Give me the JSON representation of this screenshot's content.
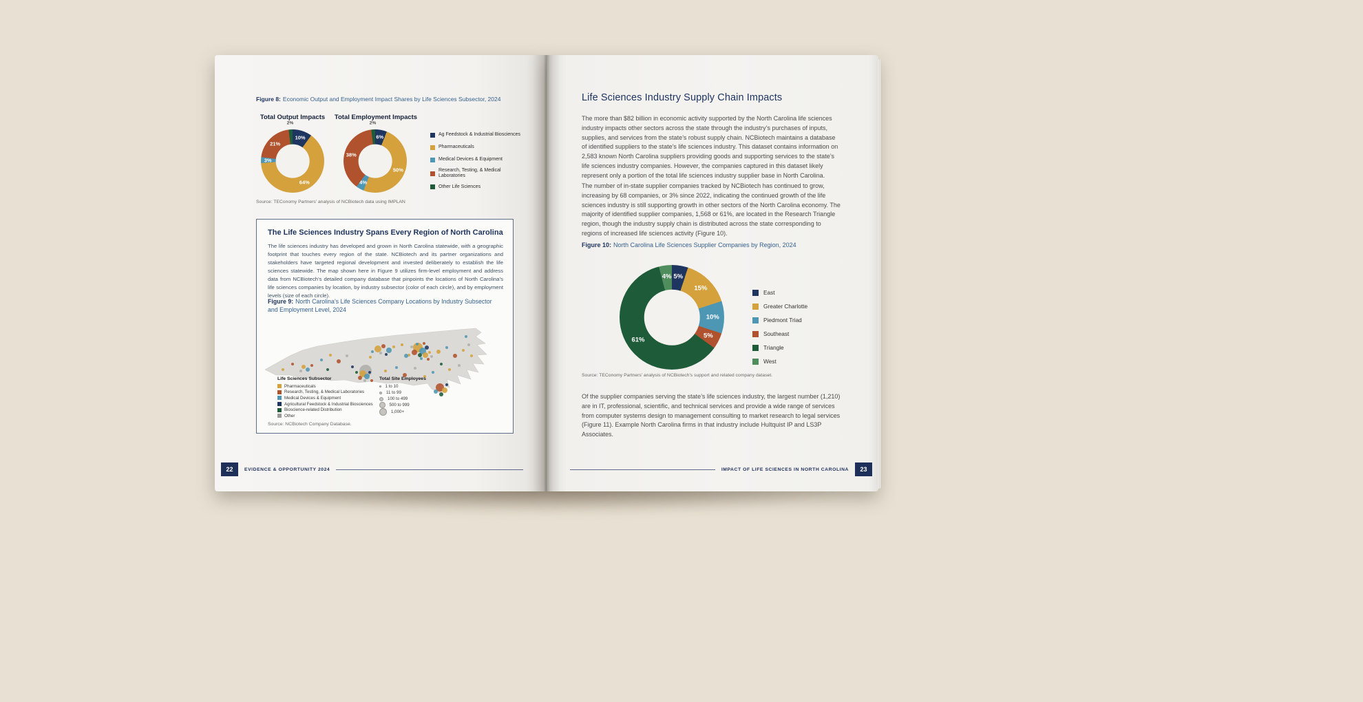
{
  "book": {
    "left_footer": {
      "page_number": "22",
      "label": "EVIDENCE & OPPORTUNITY 2024"
    },
    "right_footer": {
      "page_number": "23",
      "label": "IMPACT OF LIFE SCIENCES IN NORTH CAROLINA"
    }
  },
  "left_page": {
    "figure8": {
      "label": "Figure 8:",
      "caption": "Economic Output and Employment Impact Shares by Life Sciences Subsector, 2024",
      "source": "Source: TEConomy Partners’ analysis of NCBiotech data using IMPLAN"
    },
    "region_box": {
      "title": "The Life Sciences Industry Spans Every Region of North Carolina",
      "body": "The life sciences industry has developed and grown in North Carolina statewide, with a geographic footprint that touches every region of the state. NCBiotech and its partner organizations and stakeholders have targeted regional development and invested deliberately to establish the life sciences statewide. The map shown here in Figure 9 utilizes firm-level employment and address data from NCBiotech’s detailed company database that pinpoints the locations of North Carolina’s life sciences companies by location, by industry subsector (color of each circle), and by employment levels (size of each circle).",
      "figure9_label": "Figure 9:",
      "figure9_caption": "North Carolina’s Life Sciences Company Locations by Industry Subsector and Employment Level, 2024",
      "source": "Source: NCBiotech Company Database."
    }
  },
  "right_page": {
    "heading": "Life Sciences Industry Supply Chain Impacts",
    "para1": "The more than $82 billion in economic activity supported by the North Carolina life sciences industry impacts other sectors across the state through the industry’s purchases of inputs, supplies, and services from the state’s robust supply chain. NCBiotech maintains a database of identified suppliers to the state’s life sciences industry. This dataset contains information on 2,583 known North Carolina suppliers providing goods and supporting services to the state’s life sciences industry companies. However, the companies captured in this dataset likely represent only a portion of the total life sciences industry supplier base in North Carolina.",
    "para2": "The number of in-state supplier companies tracked by NCBiotech has continued to grow, increasing by 68 companies, or 3% since 2022, indicating the continued growth of the life sciences industry is still supporting growth in other sectors of the North Carolina economy. The majority of identified supplier companies, 1,568 or 61%, are located in the Research Triangle region, though the industry supply chain is distributed across the state corresponding to regions of increased life sciences activity (Figure 10).",
    "figure10_label": "Figure 10:",
    "figure10_caption": "North Carolina Life Sciences Supplier Companies by Region, 2024",
    "source": "Source: TEConomy Partners’ analysis of NCBiotech’s support and related company dataset.",
    "para3": "Of the supplier companies serving the state’s life sciences industry, the largest number (1,210) are in IT, professional, scientific, and technical services and provide a wide range of services from computer systems design to management consulting to market research to legal services (Figure 11). Example North Carolina firms in that industry include Hultquist IP and LS3P Associates."
  },
  "chart_data": [
    {
      "id": "output-impacts",
      "type": "pie",
      "donut": true,
      "title": "Total Output Impacts",
      "categories": [
        "Ag Feedstock & Industrial Biosciences",
        "Pharmaceuticals",
        "Medical Devices & Equipment",
        "Research, Testing, & Medical Laboratories",
        "Other Life Sciences"
      ],
      "values": [
        10,
        64,
        3,
        21,
        2
      ],
      "colors": [
        "#1e3560",
        "#d4a13c",
        "#4d96b4",
        "#b0522d",
        "#1d5b39"
      ],
      "legend_position": "right"
    },
    {
      "id": "employment-impacts",
      "type": "pie",
      "donut": true,
      "title": "Total Employment Impacts",
      "categories": [
        "Ag Feedstock & Industrial Biosciences",
        "Pharmaceuticals",
        "Medical Devices & Equipment",
        "Research, Testing, & Medical Laboratories",
        "Other Life Sciences"
      ],
      "values": [
        6,
        50,
        4,
        38,
        2
      ],
      "colors": [
        "#1e3560",
        "#d4a13c",
        "#4d96b4",
        "#b0522d",
        "#1d5b39"
      ],
      "legend_position": "right"
    },
    {
      "id": "supplier-regions",
      "type": "pie",
      "donut": true,
      "title": "North Carolina Life Sciences Supplier Companies by Region, 2024",
      "categories": [
        "East",
        "Greater Charlotte",
        "Piedmont Triad",
        "Southeast",
        "Triangle",
        "West"
      ],
      "values": [
        5,
        15,
        10,
        5,
        61,
        4
      ],
      "colors": [
        "#1e3560",
        "#d4a13c",
        "#4d96b4",
        "#b0522d",
        "#1d5b39",
        "#4f8d5d"
      ],
      "legend_position": "right"
    },
    {
      "id": "nc-company-map",
      "type": "scatter",
      "title": "North Carolina’s Life Sciences Company Locations by Industry Subsector and Employment Level, 2024",
      "palette": {
        "g": "#d4a13c",
        "r": "#b0522d",
        "b": "#4d96b4",
        "n": "#1e3560",
        "e": "#1d5b39",
        "y": "#9b9b97"
      },
      "subsector_legend_title": "Life Sciences Subsector",
      "subsectors": [
        {
          "label": "Pharmaceuticals",
          "color": "#d4a13c"
        },
        {
          "label": "Research, Testing, & Medical Laboratories",
          "color": "#b0522d"
        },
        {
          "label": "Medical Devices & Equipment",
          "color": "#4d96b4"
        },
        {
          "label": "Agricultural Feedstock & Industrial Biosciences",
          "color": "#1e3560"
        },
        {
          "label": "Bioscience-related Distribution",
          "color": "#1d5b39"
        },
        {
          "label": "Other",
          "color": "#9b9b97"
        }
      ],
      "size_legend_title": "Total Site Employees",
      "size_legend": [
        {
          "label": "1 to 10",
          "d": 2.5
        },
        {
          "label": "11 to 99",
          "d": 4
        },
        {
          "label": "100 to 499",
          "d": 6
        },
        {
          "label": "500 to 999",
          "d": 8.5
        },
        {
          "label": "1,000+",
          "d": 11
        }
      ],
      "dots": [
        [
          226,
          46,
          7,
          "g"
        ],
        [
          233,
          51,
          5,
          "b"
        ],
        [
          221,
          53,
          4,
          "r"
        ],
        [
          239,
          46,
          3,
          "n"
        ],
        [
          229,
          57,
          3,
          "e"
        ],
        [
          237,
          57,
          4,
          "g"
        ],
        [
          217,
          45,
          2,
          "y"
        ],
        [
          243,
          53,
          2,
          "g"
        ],
        [
          225,
          41,
          2,
          "b"
        ],
        [
          235,
          40,
          2,
          "r"
        ],
        [
          246,
          59,
          2,
          "y"
        ],
        [
          213,
          57,
          2,
          "g"
        ],
        [
          231,
          62,
          2,
          "b"
        ],
        [
          241,
          63,
          2,
          "r"
        ],
        [
          168,
          48,
          5,
          "g"
        ],
        [
          176,
          44,
          3,
          "r"
        ],
        [
          184,
          50,
          4,
          "b"
        ],
        [
          191,
          45,
          2,
          "g"
        ],
        [
          172,
          54,
          2,
          "y"
        ],
        [
          180,
          56,
          2,
          "n"
        ],
        [
          160,
          52,
          2,
          "b"
        ],
        [
          150,
          80,
          9,
          "y"
        ],
        [
          146,
          84,
          5,
          "g"
        ],
        [
          152,
          88,
          4,
          "b"
        ],
        [
          142,
          90,
          3,
          "r"
        ],
        [
          156,
          82,
          2,
          "n"
        ],
        [
          149,
          94,
          2,
          "y"
        ],
        [
          137,
          82,
          2,
          "e"
        ],
        [
          60,
          74,
          3,
          "g"
        ],
        [
          66,
          78,
          3,
          "b"
        ],
        [
          72,
          72,
          2,
          "r"
        ],
        [
          56,
          80,
          2,
          "y"
        ],
        [
          30,
          78,
          2,
          "g"
        ],
        [
          44,
          70,
          2,
          "r"
        ],
        [
          86,
          64,
          2,
          "b"
        ],
        [
          99,
          57,
          2,
          "g"
        ],
        [
          111,
          66,
          3,
          "r"
        ],
        [
          123,
          58,
          2,
          "y"
        ],
        [
          95,
          78,
          2,
          "e"
        ],
        [
          203,
          42,
          2,
          "g"
        ],
        [
          209,
          58,
          3,
          "b"
        ],
        [
          157,
          60,
          2,
          "g"
        ],
        [
          131,
          74,
          2,
          "n"
        ],
        [
          195,
          75,
          2,
          "b"
        ],
        [
          179,
          80,
          2,
          "g"
        ],
        [
          207,
          86,
          3,
          "r"
        ],
        [
          222,
          76,
          2,
          "y"
        ],
        [
          236,
          88,
          2,
          "g"
        ],
        [
          159,
          94,
          2,
          "r"
        ],
        [
          256,
          52,
          3,
          "g"
        ],
        [
          268,
          46,
          2,
          "b"
        ],
        [
          280,
          58,
          3,
          "r"
        ],
        [
          292,
          50,
          2,
          "g"
        ],
        [
          300,
          42,
          2,
          "y"
        ],
        [
          260,
          70,
          2,
          "e"
        ],
        [
          272,
          78,
          2,
          "g"
        ],
        [
          248,
          82,
          2,
          "b"
        ],
        [
          286,
          72,
          2,
          "y"
        ],
        [
          304,
          58,
          2,
          "g"
        ],
        [
          296,
          30,
          2,
          "b"
        ],
        [
          258,
          104,
          6,
          "r"
        ],
        [
          265,
          108,
          4,
          "g"
        ],
        [
          252,
          110,
          3,
          "b"
        ],
        [
          268,
          100,
          2,
          "n"
        ],
        [
          260,
          114,
          3,
          "e"
        ]
      ]
    }
  ]
}
